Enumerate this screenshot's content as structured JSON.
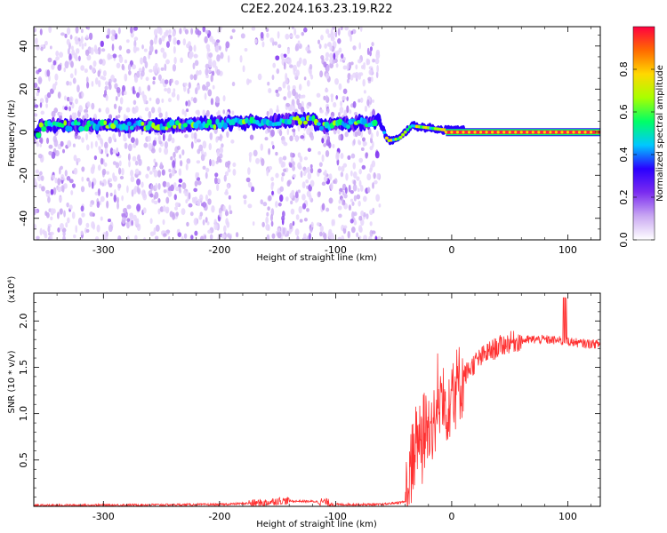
{
  "chart_data": [
    {
      "type": "heatmap",
      "title": "C2E2.2024.163.23.19.R22",
      "xlabel": "Height of straight line (km)",
      "ylabel": "Frequency (Hz)",
      "xlim": [
        -360,
        128
      ],
      "ylim": [
        -50,
        49
      ],
      "x_ticks": [
        -300,
        -200,
        -100,
        0,
        100
      ],
      "y_ticks": [
        40,
        20,
        0,
        -20,
        -40
      ],
      "colorbar": {
        "label": "Normalized spectral amplitude",
        "range": [
          0.0,
          1.0
        ],
        "ticks": [
          "0.0",
          "0.2",
          "0.4",
          "0.6",
          "0.8"
        ],
        "colors": [
          "#ffffff",
          "#c9a8f2",
          "#7b2cf0",
          "#2a00ff",
          "#00c8ff",
          "#00ff66",
          "#a8ff00",
          "#ffd800",
          "#ff6a00",
          "#ff0040"
        ]
      },
      "signal_track": [
        {
          "x": -355,
          "y": 3
        },
        {
          "x": -300,
          "y": 3
        },
        {
          "x": -250,
          "y": 3
        },
        {
          "x": -200,
          "y": 4
        },
        {
          "x": -150,
          "y": 5
        },
        {
          "x": -120,
          "y": 6
        },
        {
          "x": -115,
          "y": 3
        },
        {
          "x": -62,
          "y": 5
        },
        {
          "x": -55,
          "y": -4
        },
        {
          "x": -45,
          "y": -3
        },
        {
          "x": -35,
          "y": 3
        },
        {
          "x": -20,
          "y": 2
        },
        {
          "x": -5,
          "y": 1
        },
        {
          "x": 10,
          "y": 1
        },
        {
          "x": 50,
          "y": 0
        },
        {
          "x": 100,
          "y": 0
        },
        {
          "x": 128,
          "y": 0
        }
      ],
      "noise_bands": [
        [
          -360,
          -120
        ],
        [
          -115,
          -62
        ]
      ]
    },
    {
      "type": "line",
      "xlabel": "Height of straight line (km)",
      "ylabel": "SNR (10 * v/v)",
      "y_scale_label": "(x10⁴)",
      "xlim": [
        -360,
        128
      ],
      "ylim": [
        0,
        2.3
      ],
      "x_ticks": [
        -300,
        -200,
        -100,
        0,
        100
      ],
      "y_ticks": [
        "0.5",
        "1.0",
        "1.5",
        "2.0"
      ],
      "series": [
        {
          "color": "#ff3030",
          "x": [
            -360,
            -200,
            -160,
            -150,
            -110,
            -100,
            -60,
            -40,
            -35,
            -30,
            -25,
            -20,
            -15,
            -10,
            -5,
            0,
            10,
            20,
            30,
            40,
            50,
            60,
            70,
            80,
            90,
            100,
            110,
            128
          ],
          "y": [
            0.01,
            0.02,
            0.04,
            0.06,
            0.05,
            0.02,
            0.02,
            0.05,
            0.4,
            0.75,
            0.8,
            0.85,
            0.95,
            1.05,
            1.1,
            1.2,
            1.4,
            1.55,
            1.65,
            1.72,
            1.77,
            1.79,
            1.8,
            1.8,
            1.79,
            1.78,
            1.76,
            1.75
          ]
        }
      ]
    }
  ]
}
